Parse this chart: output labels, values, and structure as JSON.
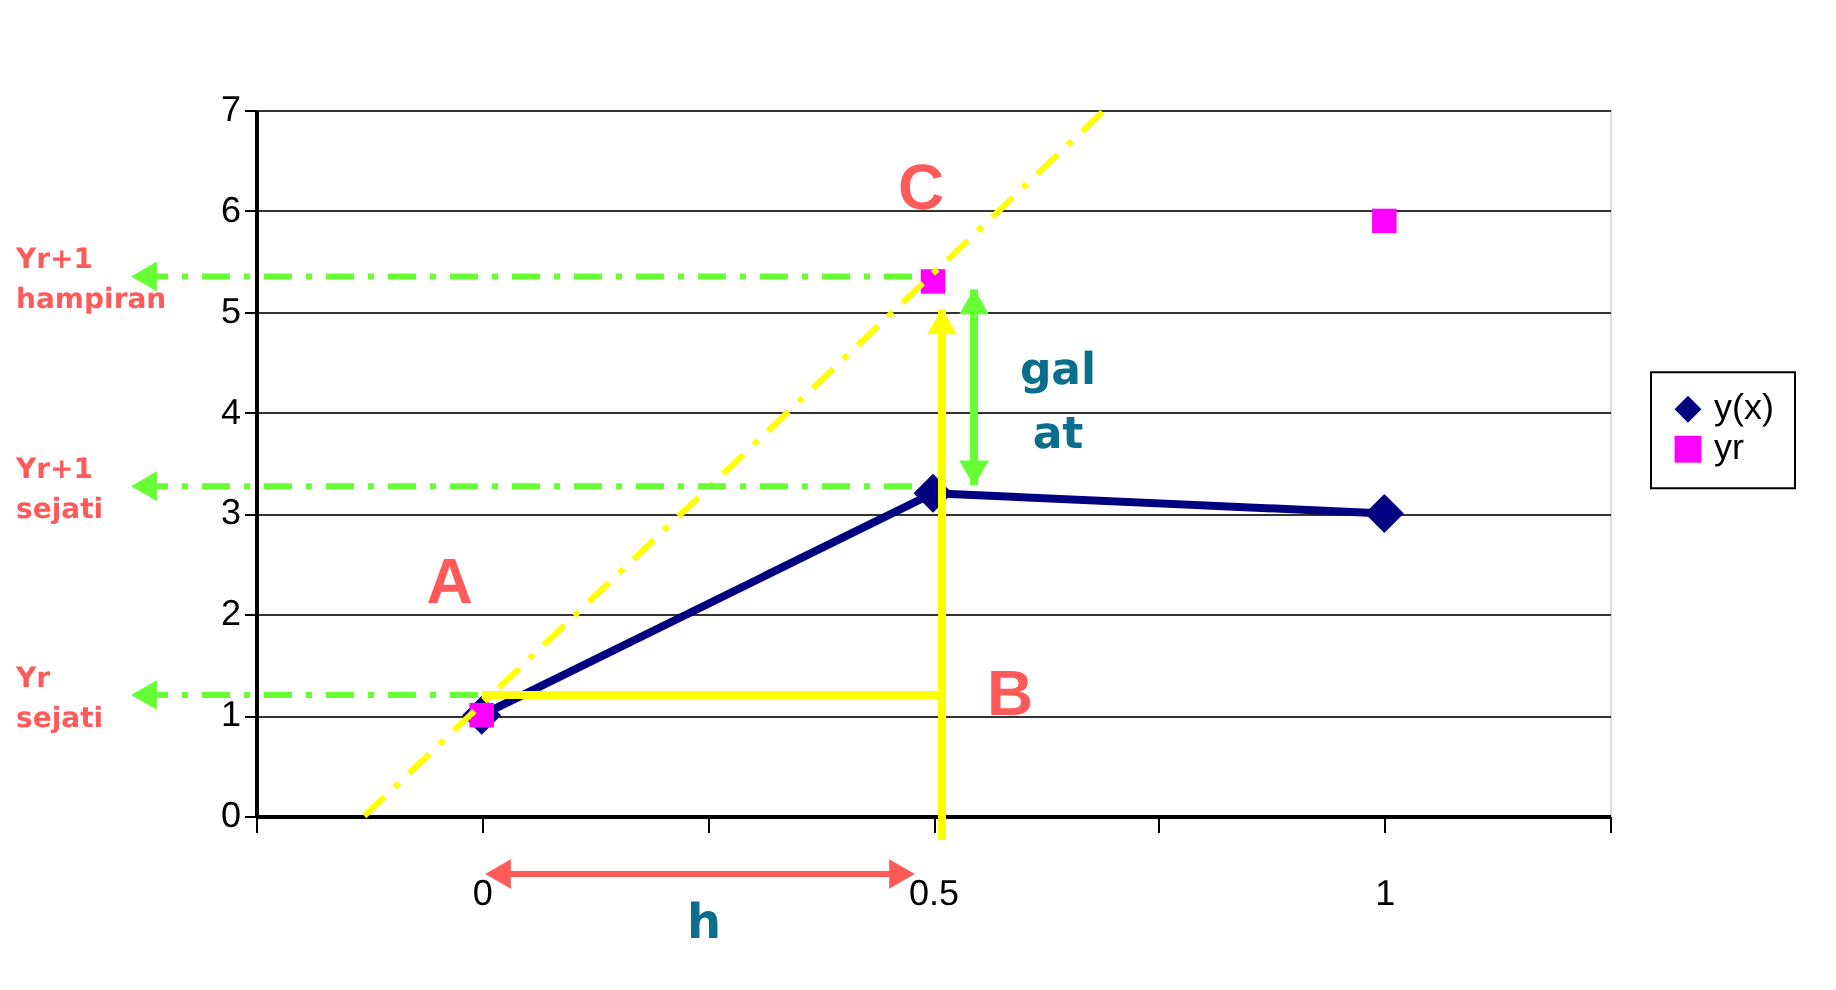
{
  "chart_data": {
    "type": "line",
    "xlim": [
      -0.25,
      1.25
    ],
    "xticks": [
      {
        "value": -0.25,
        "label": null
      },
      0,
      {
        "value": 0.25,
        "label": null
      },
      0.5,
      {
        "value": 0.75,
        "label": null
      },
      1,
      {
        "value": 1.25,
        "label": null
      }
    ],
    "ylim": [
      0,
      7
    ],
    "yticks": [
      0,
      1,
      2,
      3,
      4,
      5,
      6,
      7
    ],
    "grid": "y",
    "legend": "right",
    "series": [
      {
        "name": "y(x)",
        "marker": "diamond",
        "line_style": "solid",
        "color": "#000080",
        "x": [
          0,
          0.5,
          1
        ],
        "values": [
          1,
          3.2,
          3
        ]
      },
      {
        "name": "yr",
        "type": "scatter",
        "marker": "square",
        "color": "#ff00ff",
        "x": [
          0,
          0.5,
          1
        ],
        "values": [
          1,
          5.3,
          5.9
        ]
      },
      {
        "type": "line",
        "marker": "none",
        "line_style": "dashed",
        "color": "#ffff00",
        "x": [
          -0.13,
          0.69
        ],
        "values": [
          0,
          7
        ]
      },
      {
        "type": "line",
        "marker": "none",
        "line_style": "solid",
        "color": "#ffff00",
        "x": [
          0,
          0.51
        ],
        "values": [
          1.2,
          1.2
        ]
      }
    ],
    "annotations": [
      {
        "text": "A",
        "x": 0,
        "y": 1
      },
      {
        "text": "B",
        "x": 0.51,
        "y": 1.2
      },
      {
        "text": "C",
        "x": 0.5,
        "y": 5.3
      },
      "gal at",
      "h"
    ],
    "ref_lines": [
      {
        "axis": "y",
        "value": 5.35,
        "label": "Yr+1 hampiran",
        "color": "#66ff33",
        "line_style": "dashed"
      },
      {
        "axis": "y",
        "value": 3.27,
        "label": "Yr+1 sejati",
        "color": "#66ff33",
        "line_style": "dashed"
      },
      {
        "axis": "y",
        "value": 1.2,
        "label": "Yr sejati",
        "color": "#66ff33",
        "line_style": "dashed"
      }
    ]
  }
}
